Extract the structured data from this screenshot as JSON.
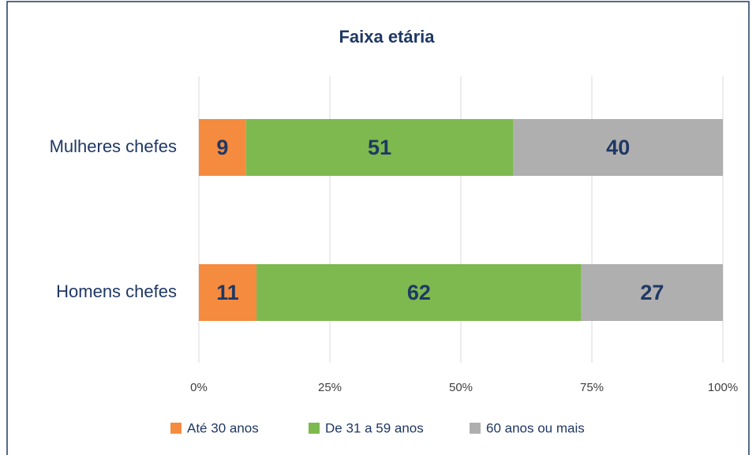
{
  "chart_data": {
    "type": "stacked-bar-horizontal",
    "title": "Faixa etária",
    "categories": [
      "Mulheres chefes",
      "Homens chefes"
    ],
    "series": [
      {
        "name": "Até 30 anos",
        "color": "#F58B3F",
        "values": [
          9,
          11
        ]
      },
      {
        "name": "De 31 a 59 anos",
        "color": "#7DB94F",
        "values": [
          51,
          62
        ]
      },
      {
        "name": "60 anos ou mais",
        "color": "#AFAFAF",
        "values": [
          40,
          27
        ]
      }
    ],
    "xlim": [
      0,
      100
    ],
    "xticks": [
      {
        "value": 0,
        "label": "0%"
      },
      {
        "value": 25,
        "label": "25%"
      },
      {
        "value": 50,
        "label": "50%"
      },
      {
        "value": 75,
        "label": "75%"
      },
      {
        "value": 100,
        "label": "100%"
      }
    ],
    "grid": true,
    "legend": "bottom"
  }
}
